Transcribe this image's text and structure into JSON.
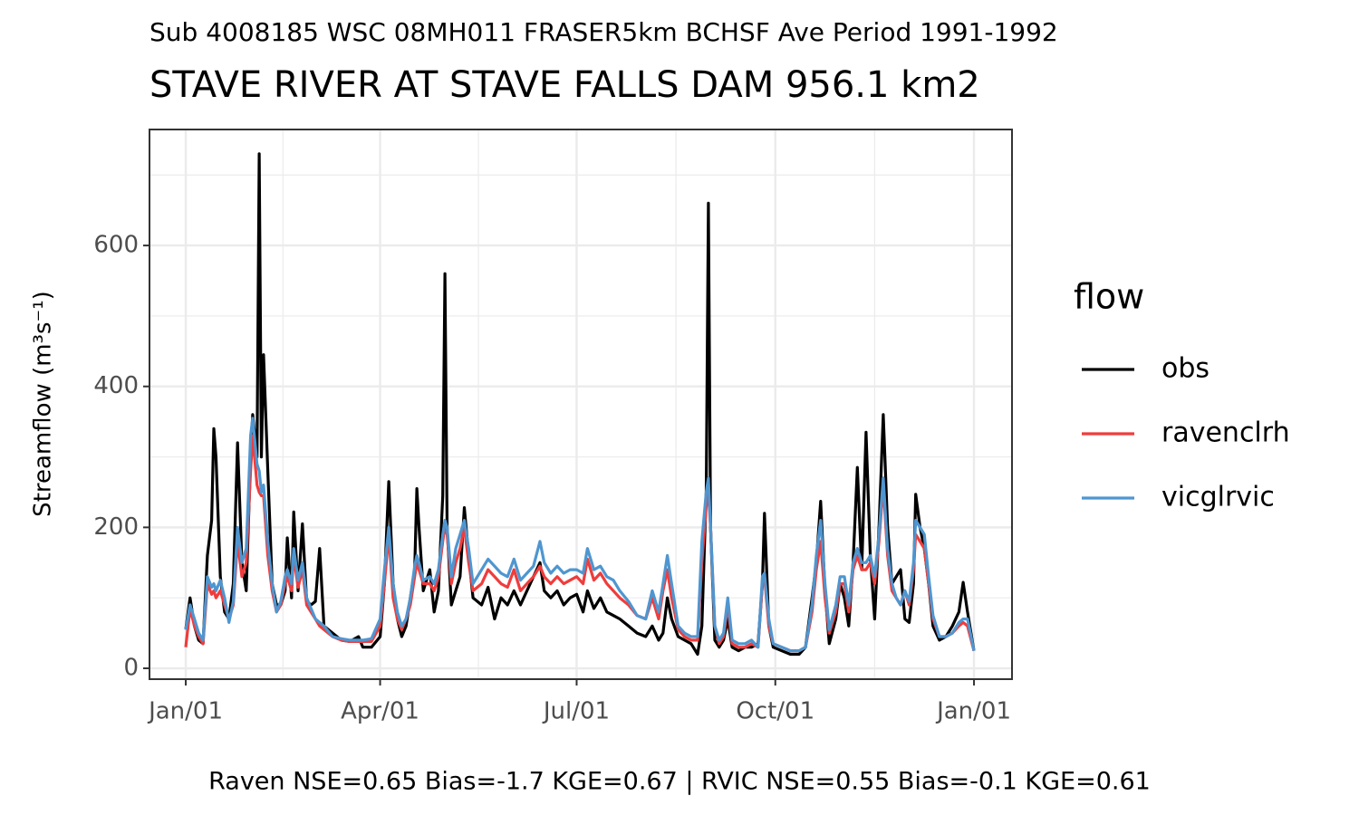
{
  "chart_data": {
    "type": "line",
    "subtitle": "Sub 4008185 WSC 08MH011 FRASER5km BCHSF Ave Period 1991-1992",
    "title": "STAVE RIVER AT STAVE FALLS DAM 956.1 km2",
    "y_label": "Streamflow (m³s⁻¹)",
    "legend_title": "flow",
    "footer": "Raven NSE=0.65 Bias=-1.7 KGE=0.67 | RVIC NSE=0.55 Bias=-0.1 KGE=0.61",
    "x": [
      0,
      2,
      4,
      6,
      8,
      10,
      12,
      13,
      14,
      16,
      18,
      20,
      22,
      24,
      26,
      28,
      30,
      31,
      33,
      34,
      35,
      36,
      38,
      40,
      42,
      44,
      46,
      47,
      49,
      50,
      52,
      54,
      56,
      58,
      60,
      62,
      64,
      68,
      72,
      76,
      80,
      82,
      86,
      90,
      92,
      94,
      96,
      98,
      100,
      102,
      104,
      106,
      107,
      108,
      110,
      113,
      115,
      117,
      119,
      120,
      121,
      123,
      125,
      127,
      129,
      131,
      133,
      137,
      140,
      143,
      146,
      149,
      152,
      155,
      158,
      161,
      164,
      166,
      169,
      172,
      175,
      178,
      181,
      184,
      186,
      189,
      192,
      195,
      198,
      201,
      205,
      209,
      213,
      216,
      219,
      221,
      223,
      225,
      228,
      231,
      234,
      237,
      239,
      241,
      242,
      243,
      245,
      247,
      249,
      251,
      253,
      256,
      259,
      262,
      265,
      267,
      268,
      270,
      272,
      276,
      280,
      284,
      287,
      290,
      292,
      294,
      296,
      298,
      301,
      303,
      305,
      307,
      309,
      311,
      313,
      315,
      317,
      319,
      321,
      323,
      325,
      327,
      329,
      331,
      333,
      335,
      337,
      338,
      340,
      342,
      344,
      346,
      349,
      352,
      355,
      358,
      360,
      362,
      365
    ],
    "series": [
      {
        "name": "obs",
        "color": "#000000",
        "values": [
          55,
          100,
          60,
          40,
          35,
          160,
          210,
          340,
          300,
          130,
          80,
          70,
          120,
          320,
          150,
          110,
          300,
          360,
          300,
          730,
          300,
          445,
          280,
          120,
          90,
          90,
          110,
          185,
          100,
          222,
          110,
          205,
          95,
          90,
          95,
          170,
          60,
          50,
          40,
          38,
          45,
          30,
          30,
          45,
          120,
          265,
          120,
          70,
          45,
          60,
          100,
          140,
          255,
          200,
          110,
          140,
          80,
          110,
          245,
          560,
          200,
          90,
          110,
          130,
          228,
          160,
          100,
          90,
          115,
          70,
          100,
          90,
          110,
          90,
          110,
          130,
          150,
          110,
          100,
          110,
          90,
          100,
          105,
          80,
          110,
          85,
          100,
          80,
          75,
          70,
          60,
          50,
          45,
          60,
          40,
          50,
          100,
          70,
          45,
          40,
          35,
          20,
          60,
          250,
          660,
          200,
          40,
          30,
          40,
          70,
          30,
          25,
          30,
          30,
          35,
          120,
          220,
          60,
          30,
          25,
          20,
          20,
          30,
          100,
          150,
          237,
          110,
          35,
          70,
          120,
          100,
          60,
          150,
          285,
          140,
          335,
          160,
          70,
          200,
          360,
          200,
          120,
          130,
          140,
          70,
          65,
          120,
          247,
          200,
          170,
          120,
          60,
          40,
          45,
          60,
          80,
          122,
          80,
          25
        ]
      },
      {
        "name": "ravenclrh",
        "color": "#f03c3c",
        "values": [
          30,
          85,
          60,
          45,
          35,
          120,
          105,
          110,
          100,
          110,
          90,
          70,
          90,
          180,
          130,
          150,
          280,
          330,
          260,
          250,
          245,
          245,
          160,
          110,
          80,
          90,
          120,
          130,
          110,
          160,
          115,
          140,
          90,
          80,
          70,
          60,
          55,
          45,
          40,
          38,
          38,
          38,
          38,
          60,
          120,
          190,
          100,
          70,
          55,
          70,
          90,
          130,
          150,
          140,
          120,
          120,
          110,
          130,
          180,
          200,
          190,
          120,
          150,
          170,
          200,
          150,
          110,
          120,
          140,
          130,
          120,
          115,
          140,
          110,
          120,
          130,
          145,
          130,
          120,
          130,
          120,
          125,
          130,
          120,
          155,
          125,
          135,
          120,
          110,
          100,
          90,
          75,
          70,
          100,
          70,
          110,
          140,
          100,
          55,
          45,
          40,
          40,
          150,
          230,
          250,
          200,
          60,
          35,
          45,
          90,
          35,
          30,
          30,
          35,
          30,
          120,
          130,
          60,
          35,
          30,
          25,
          25,
          30,
          80,
          140,
          180,
          100,
          50,
          80,
          120,
          120,
          80,
          140,
          160,
          140,
          140,
          150,
          120,
          180,
          260,
          160,
          110,
          100,
          90,
          110,
          90,
          140,
          190,
          180,
          170,
          120,
          70,
          45,
          45,
          50,
          60,
          65,
          60,
          25
        ]
      },
      {
        "name": "vicglrvic",
        "color": "#4f96d0",
        "values": [
          55,
          90,
          70,
          50,
          40,
          130,
          115,
          120,
          110,
          125,
          100,
          65,
          95,
          200,
          150,
          170,
          330,
          355,
          290,
          280,
          250,
          260,
          180,
          120,
          80,
          95,
          130,
          140,
          120,
          170,
          125,
          150,
          100,
          85,
          70,
          65,
          60,
          45,
          42,
          40,
          40,
          40,
          42,
          70,
          140,
          200,
          120,
          80,
          60,
          70,
          100,
          145,
          160,
          150,
          125,
          130,
          120,
          140,
          190,
          210,
          200,
          130,
          170,
          190,
          210,
          170,
          120,
          140,
          155,
          145,
          135,
          130,
          155,
          125,
          135,
          145,
          180,
          150,
          135,
          145,
          135,
          140,
          140,
          135,
          170,
          140,
          145,
          130,
          125,
          110,
          95,
          75,
          70,
          110,
          80,
          120,
          160,
          120,
          60,
          50,
          45,
          45,
          180,
          250,
          270,
          200,
          60,
          40,
          50,
          100,
          40,
          35,
          35,
          40,
          30,
          130,
          135,
          70,
          35,
          30,
          25,
          25,
          30,
          90,
          160,
          210,
          120,
          55,
          90,
          130,
          130,
          90,
          150,
          170,
          150,
          150,
          160,
          130,
          190,
          270,
          170,
          120,
          100,
          90,
          110,
          95,
          150,
          210,
          200,
          190,
          130,
          75,
          45,
          45,
          50,
          65,
          70,
          70,
          25
        ]
      }
    ],
    "xlim": [
      -16.8,
      382.6
    ],
    "xticks": [
      {
        "value": 0,
        "label": "Jan/01"
      },
      {
        "value": 90,
        "label": "Apr/01"
      },
      {
        "value": 181,
        "label": "Jul/01"
      },
      {
        "value": 273,
        "label": "Oct/01"
      },
      {
        "value": 365,
        "label": "Jan/01"
      }
    ],
    "x_minor_ticks": [
      45,
      135.5,
      227,
      319
    ],
    "ylim": [
      -15.4,
      764.6
    ],
    "yticks": [
      0,
      200,
      400,
      600
    ],
    "y_minor_ticks": [
      100,
      300,
      500,
      700
    ],
    "grid": true,
    "legend": "right"
  }
}
